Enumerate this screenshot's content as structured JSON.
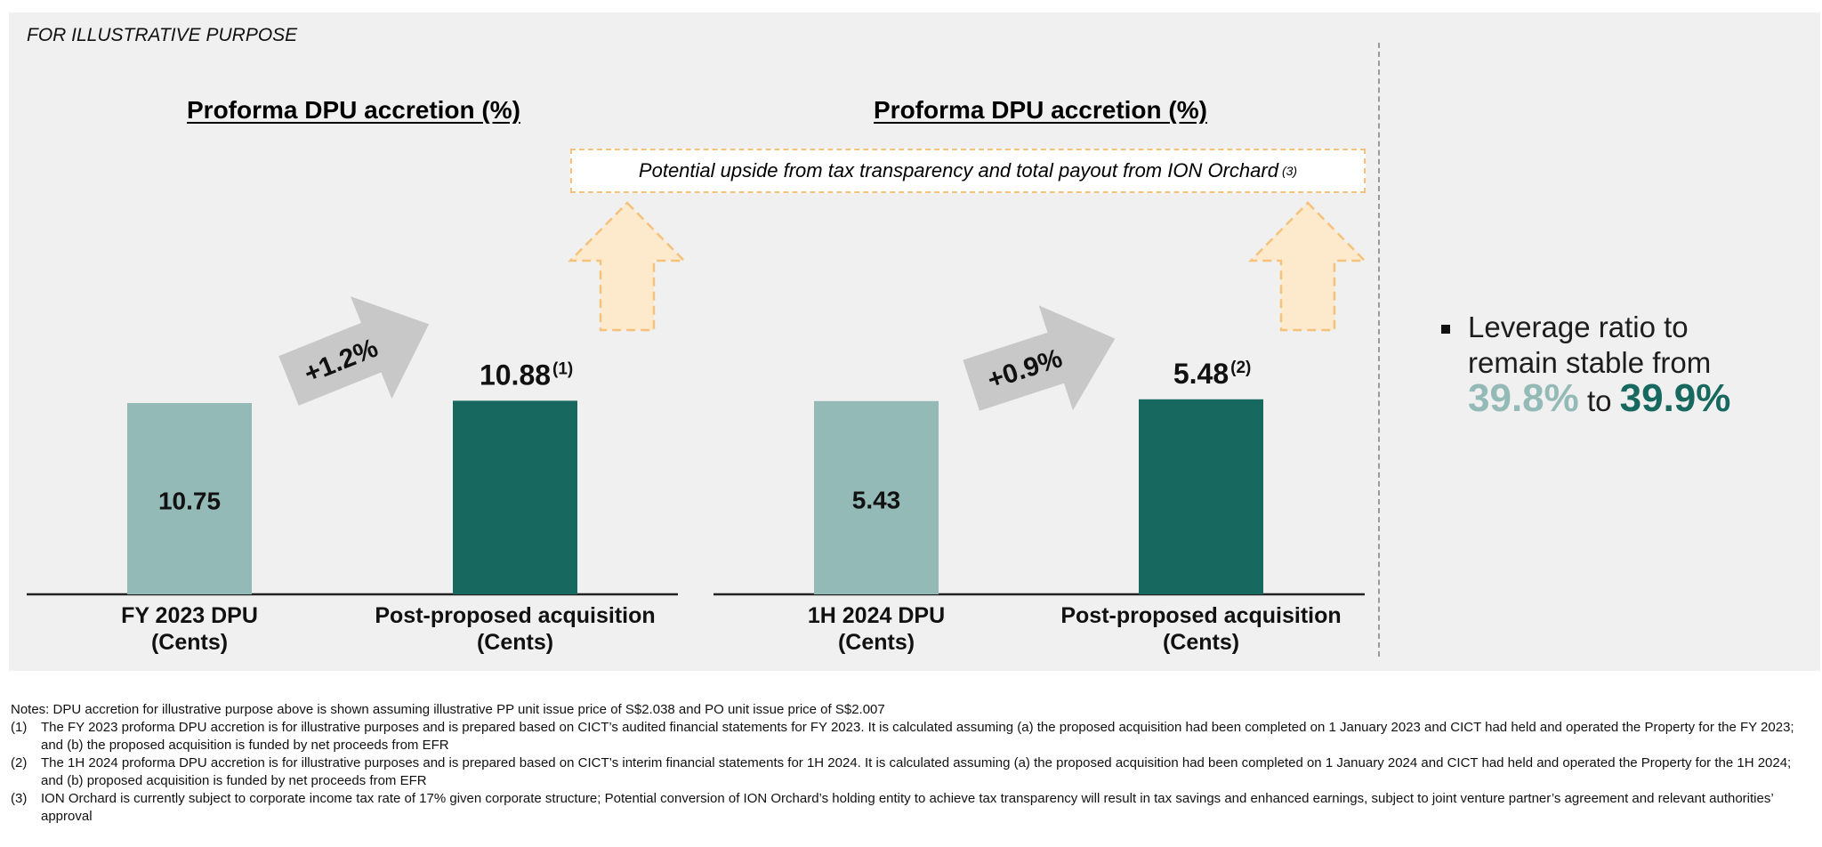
{
  "illustrative_label": "FOR ILLUSTRATIVE PURPOSE",
  "upside_box": {
    "text": "Potential upside from tax transparency and total payout from ION Orchard",
    "ref": "(3)"
  },
  "colors": {
    "base_bar": "#94bab7",
    "post_bar": "#17685e",
    "growth_arrow": "#c8c8c8",
    "upside_arrow_fill": "#fde9cc",
    "upside_arrow_border": "#f5c27c"
  },
  "chart_data": [
    {
      "type": "bar",
      "title": "Proforma DPU accretion (%)",
      "categories": [
        "FY 2023 DPU\n(Cents)",
        "Post-proposed acquisition\n(Cents)"
      ],
      "values": [
        10.75,
        10.88
      ],
      "value_labels": [
        "10.75",
        "10.88"
      ],
      "value_refs": [
        "",
        "(1)"
      ],
      "growth_label": "+1.2%"
    },
    {
      "type": "bar",
      "title": "Proforma DPU accretion (%)",
      "categories": [
        "1H 2024 DPU\n(Cents)",
        "Post-proposed acquisition\n(Cents)"
      ],
      "values": [
        5.43,
        5.48
      ],
      "value_labels": [
        "5.43",
        "5.48"
      ],
      "value_refs": [
        "",
        "(2)"
      ],
      "growth_label": "+0.9%"
    }
  ],
  "leverage": {
    "text": "Leverage ratio to remain stable from",
    "old_value": "39.8%",
    "connector": "to",
    "new_value": "39.9%"
  },
  "notes": {
    "intro": "Notes: DPU accretion for illustrative purpose above is shown assuming illustrative PP unit issue price of S$2.038 and PO unit issue price of S$2.007",
    "items": [
      {
        "num": "(1)",
        "text": "The FY 2023 proforma DPU accretion is for illustrative purposes and is prepared based on CICT’s audited financial statements for FY 2023. It is calculated assuming (a) the proposed acquisition had been completed on 1 January 2023 and CICT had held and operated the Property for the FY 2023; and (b) the proposed acquisition is funded by net proceeds from EFR"
      },
      {
        "num": "(2)",
        "text": "The 1H 2024 proforma DPU accretion is for illustrative purposes and is prepared based on CICT’s interim financial statements for 1H 2024. It is calculated assuming (a) the proposed acquisition had been completed on 1 January 2024 and CICT had held and operated the Property for the 1H 2024; and (b) proposed acquisition is funded by net proceeds from EFR"
      },
      {
        "num": "(3)",
        "text": "ION Orchard is currently subject to corporate income tax rate of 17% given corporate structure; Potential conversion of ION Orchard’s holding entity to achieve tax transparency will result in tax savings and enhanced earnings, subject to joint venture partner’s agreement and relevant authorities’ approval"
      }
    ]
  }
}
